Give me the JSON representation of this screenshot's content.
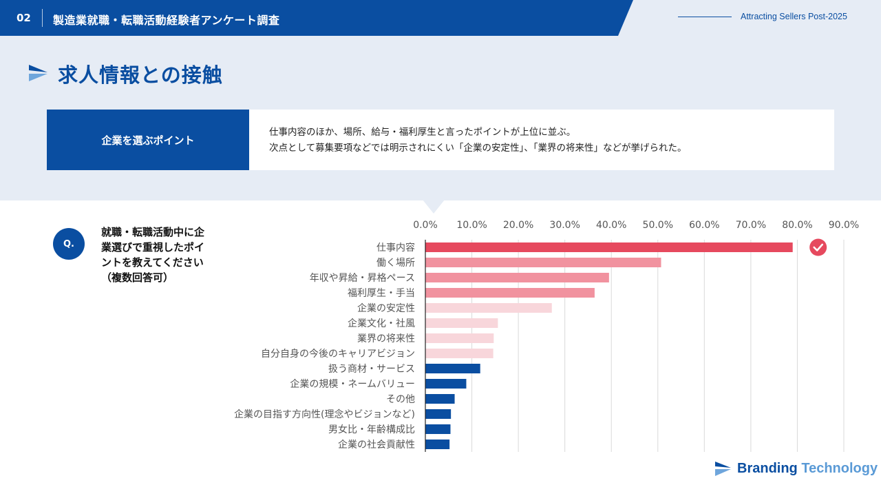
{
  "header": {
    "number": "02",
    "title": "製造業就職・転職活動経験者アンケート調査",
    "right_label": "Attracting Sellers Post-2025"
  },
  "page": {
    "title": "求人情報との接触"
  },
  "point": {
    "label": "企業を選ぶポイント",
    "line1": "仕事内容のほか、場所、給与・福利厚生と言ったポイントが上位に並ぶ。",
    "line2": "次点として募集要項などでは明示されにくい「企業の安定性」、「業界の将来性」などが挙げられた。"
  },
  "question": {
    "badge": "Q.",
    "line1": "就職・転職活動中に企",
    "line2": "業選びで重視したポイ",
    "line3": "ントを教えてください",
    "line4": "（複数回答可）"
  },
  "logo": {
    "brand1": "Branding",
    "brand2": "Technology"
  },
  "colors": {
    "primary": "#0a4ea1",
    "highlight": "#e6495e",
    "mid": "#f1929f",
    "light": "#f8d6db",
    "bar_default": "#0a4ea1",
    "bg_light": "#e6ecf5"
  },
  "chart_data": {
    "type": "bar",
    "orientation": "horizontal",
    "x_ticks": [
      "0.0%",
      "10.0%",
      "20.0%",
      "30.0%",
      "40.0%",
      "50.0%",
      "60.0%",
      "70.0%",
      "80.0%",
      "90.0%"
    ],
    "xlim": [
      0,
      90
    ],
    "grid": true,
    "categories": [
      "仕事内容",
      "働く場所",
      "年収や昇給・昇格ペース",
      "福利厚生・手当",
      "企業の安定性",
      "企業文化・社風",
      "業界の将来性",
      "自分自身の今後のキャリアビジョン",
      "扱う商材・サービス",
      "企業の規模・ネームバリュー",
      "その他",
      "企業の目指す方向性(理念やビジョンなど)",
      "男女比・年齢構成比",
      "企業の社会貢献性"
    ],
    "values": [
      79.0,
      50.7,
      39.5,
      36.4,
      27.2,
      15.6,
      14.7,
      14.6,
      11.8,
      8.8,
      6.3,
      5.5,
      5.4,
      5.2
    ],
    "color_groups": [
      "highlight",
      "mid",
      "mid",
      "mid",
      "light",
      "light",
      "light",
      "light",
      "bar_default",
      "bar_default",
      "bar_default",
      "bar_default",
      "bar_default",
      "bar_default"
    ],
    "top_marker": "check"
  }
}
